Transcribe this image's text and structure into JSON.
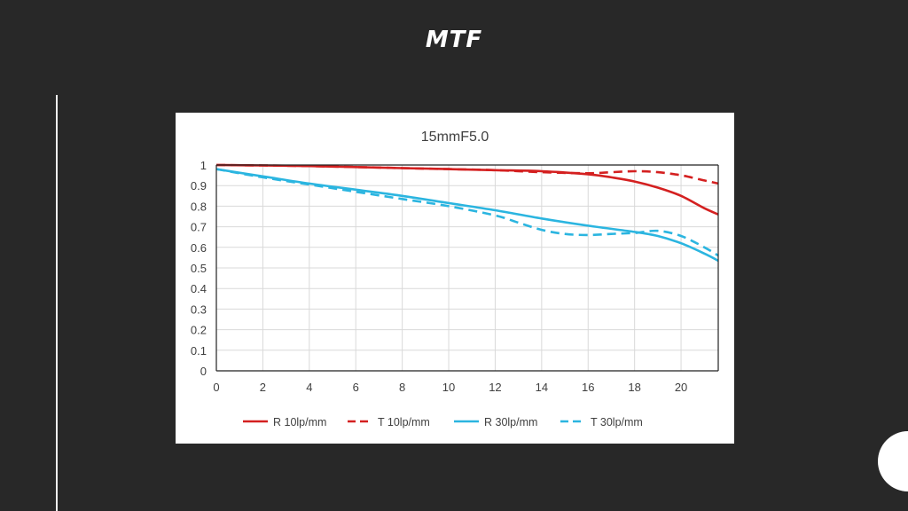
{
  "slide": {
    "title": "MTF"
  },
  "colors": {
    "background": "#282828",
    "red": "#d42020",
    "blue": "#2bb5e0",
    "grid": "#d9d9d9"
  },
  "chart_data": {
    "type": "line",
    "title": "15mmF5.0",
    "xlabel": "",
    "ylabel": "",
    "xlim": [
      0,
      21.6
    ],
    "ylim": [
      0,
      1
    ],
    "x_ticks": [
      0,
      2,
      4,
      6,
      8,
      10,
      12,
      14,
      16,
      18,
      20
    ],
    "y_ticks": [
      0,
      0.1,
      0.2,
      0.3,
      0.4,
      0.5,
      0.6,
      0.7,
      0.8,
      0.9,
      1
    ],
    "y_tick_labels": [
      "0",
      "0.1",
      "0.2",
      "0.3",
      "0.4",
      "0.5",
      "0.6",
      "0.7",
      "0.8",
      "0.9",
      "1"
    ],
    "grid": true,
    "legend_position": "bottom",
    "series": [
      {
        "name": "R 10lp/mm",
        "color": "#d42020",
        "dash": "solid",
        "x": [
          0,
          2,
          4,
          6,
          8,
          10,
          12,
          14,
          16,
          17,
          18,
          19,
          20,
          21,
          21.6
        ],
        "y": [
          1.0,
          0.998,
          0.995,
          0.99,
          0.985,
          0.98,
          0.975,
          0.97,
          0.955,
          0.94,
          0.92,
          0.89,
          0.85,
          0.79,
          0.76
        ]
      },
      {
        "name": "T 10lp/mm",
        "color": "#d42020",
        "dash": "dashed",
        "x": [
          0,
          2,
          4,
          6,
          8,
          10,
          12,
          14,
          16,
          17,
          18,
          19,
          20,
          21,
          21.6
        ],
        "y": [
          1.0,
          0.998,
          0.995,
          0.99,
          0.985,
          0.98,
          0.975,
          0.965,
          0.96,
          0.965,
          0.97,
          0.965,
          0.95,
          0.925,
          0.91
        ]
      },
      {
        "name": "R 30lp/mm",
        "color": "#2bb5e0",
        "dash": "solid",
        "x": [
          0,
          2,
          4,
          6,
          8,
          10,
          12,
          14,
          16,
          18,
          19,
          20,
          21,
          21.6
        ],
        "y": [
          0.98,
          0.945,
          0.91,
          0.88,
          0.85,
          0.815,
          0.78,
          0.74,
          0.705,
          0.675,
          0.655,
          0.62,
          0.57,
          0.535
        ]
      },
      {
        "name": "T 30lp/mm",
        "color": "#2bb5e0",
        "dash": "dashed",
        "x": [
          0,
          2,
          4,
          6,
          8,
          10,
          12,
          13,
          14,
          15,
          16,
          17,
          18,
          19,
          20,
          21,
          21.6
        ],
        "y": [
          0.98,
          0.94,
          0.905,
          0.87,
          0.835,
          0.8,
          0.755,
          0.72,
          0.685,
          0.665,
          0.66,
          0.665,
          0.67,
          0.68,
          0.655,
          0.6,
          0.56
        ]
      }
    ]
  }
}
